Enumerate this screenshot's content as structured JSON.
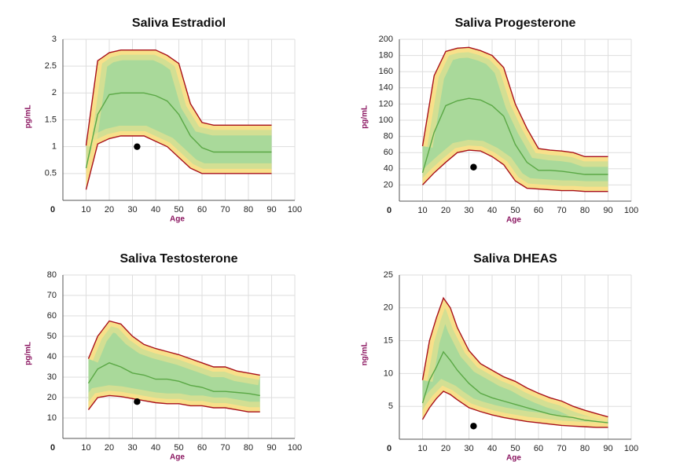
{
  "chart_data": [
    {
      "type": "band",
      "title": "Saliva Estradiol",
      "y_label": "pg/mL",
      "x_label": "Age",
      "x": [
        10,
        15,
        20,
        25,
        30,
        35,
        40,
        45,
        50,
        55,
        60,
        65,
        70,
        75,
        80,
        85,
        90
      ],
      "series": [
        {
          "color": "#a8101a",
          "values": [
            1.02,
            2.6,
            2.75,
            2.8,
            2.8,
            2.8,
            2.8,
            2.7,
            2.55,
            1.8,
            1.45,
            1.4,
            1.4,
            1.4,
            1.4,
            1.4,
            1.4
          ]
        },
        {
          "color": "#5aa845",
          "values": [
            0.6,
            1.6,
            1.97,
            2.0,
            2.0,
            2.0,
            1.95,
            1.85,
            1.6,
            1.2,
            0.98,
            0.9,
            0.9,
            0.9,
            0.9,
            0.9,
            0.9
          ]
        },
        {
          "color": "#a8101a",
          "values": [
            0.2,
            1.05,
            1.15,
            1.2,
            1.2,
            1.2,
            1.1,
            1.0,
            0.8,
            0.6,
            0.5,
            0.5,
            0.5,
            0.5,
            0.5,
            0.5,
            0.5
          ]
        }
      ],
      "points": {
        "color": "#000000",
        "x": [
          32
        ],
        "values": [
          1.0
        ]
      },
      "xlim": [
        0,
        100
      ],
      "xticks": [
        10,
        20,
        30,
        40,
        50,
        60,
        70,
        80,
        90,
        100
      ],
      "ylim": [
        0,
        3
      ],
      "yticks": [
        0,
        0.5,
        1,
        1.5,
        2,
        2.5,
        3
      ],
      "grid": true
    },
    {
      "type": "band",
      "title": "Saliva Progesterone",
      "y_label": "pg/mL",
      "x_label": "Age",
      "x": [
        10,
        15,
        20,
        25,
        30,
        35,
        40,
        45,
        50,
        55,
        60,
        65,
        70,
        75,
        80,
        85,
        90
      ],
      "series": [
        {
          "color": "#a8101a",
          "values": [
            68,
            155,
            185,
            189,
            190,
            186,
            180,
            165,
            120,
            90,
            65,
            63,
            62,
            60,
            55,
            55,
            55
          ]
        },
        {
          "color": "#5aa845",
          "values": [
            35,
            85,
            118,
            124,
            127,
            125,
            118,
            105,
            70,
            48,
            38,
            38,
            37,
            35,
            33,
            33,
            33
          ]
        },
        {
          "color": "#a8101a",
          "values": [
            20,
            35,
            48,
            60,
            63,
            62,
            55,
            45,
            25,
            16,
            15,
            14,
            13,
            13,
            12,
            12,
            12
          ]
        }
      ],
      "points": {
        "color": "#000000",
        "x": [
          32
        ],
        "values": [
          42
        ]
      },
      "xlim": [
        0,
        100
      ],
      "xticks": [
        10,
        20,
        30,
        40,
        50,
        60,
        70,
        80,
        90,
        100
      ],
      "ylim": [
        0,
        200
      ],
      "yticks": [
        0,
        20,
        40,
        60,
        80,
        100,
        120,
        140,
        160,
        180,
        200
      ],
      "grid": true
    },
    {
      "type": "band",
      "title": "Saliva Testosterone",
      "y_label": "pg/mL",
      "x_label": "Age",
      "x": [
        11,
        15,
        20,
        25,
        30,
        35,
        40,
        45,
        50,
        55,
        60,
        65,
        70,
        75,
        80,
        85
      ],
      "series": [
        {
          "color": "#a8101a",
          "values": [
            39,
            50,
            57.5,
            56,
            50,
            46,
            44,
            42.5,
            41,
            39,
            37,
            35,
            35,
            33,
            32,
            31
          ]
        },
        {
          "color": "#5aa845",
          "values": [
            27,
            34,
            37,
            35,
            32,
            31,
            29,
            29,
            28,
            26,
            25,
            23,
            23,
            22.5,
            22,
            21
          ]
        },
        {
          "color": "#a8101a",
          "values": [
            14,
            20,
            21,
            20.5,
            19.5,
            18.5,
            17.5,
            17,
            17,
            16,
            16,
            15,
            15,
            14,
            13,
            13
          ]
        }
      ],
      "points": {
        "color": "#000000",
        "x": [
          32
        ],
        "values": [
          18
        ]
      },
      "xlim": [
        0,
        100
      ],
      "xticks": [
        10,
        20,
        30,
        40,
        50,
        60,
        70,
        80,
        90,
        100
      ],
      "ylim": [
        0,
        80
      ],
      "yticks": [
        0,
        10,
        20,
        30,
        40,
        50,
        60,
        70,
        80
      ],
      "grid": true
    },
    {
      "type": "band",
      "title": "Saliva DHEAS",
      "y_label": "ng/mL",
      "x_label": "Age",
      "x": [
        10,
        13,
        16,
        19,
        22,
        25,
        30,
        35,
        40,
        45,
        50,
        55,
        60,
        65,
        70,
        75,
        80,
        85,
        90
      ],
      "series": [
        {
          "color": "#a8101a",
          "values": [
            9,
            15,
            18.5,
            21.5,
            20,
            17,
            13.5,
            11.5,
            10.5,
            9.5,
            8.8,
            7.8,
            7,
            6.3,
            5.8,
            5,
            4.4,
            3.9,
            3.4
          ]
        },
        {
          "color": "#5aa845",
          "values": [
            5.5,
            9,
            11,
            13.3,
            12,
            10.5,
            8.5,
            7,
            6.3,
            5.8,
            5.3,
            4.8,
            4.3,
            3.8,
            3.5,
            3.3,
            2.9,
            2.7,
            2.5
          ]
        },
        {
          "color": "#a8101a",
          "values": [
            3,
            4.8,
            6.2,
            7.3,
            6.8,
            6,
            4.8,
            4.2,
            3.7,
            3.3,
            3,
            2.7,
            2.5,
            2.3,
            2.1,
            2,
            1.9,
            1.8,
            1.8
          ]
        }
      ],
      "points": {
        "color": "#000000",
        "x": [
          32
        ],
        "values": [
          2
        ]
      },
      "xlim": [
        0,
        100
      ],
      "xticks": [
        10,
        20,
        30,
        40,
        50,
        60,
        70,
        80,
        90,
        100
      ],
      "ylim": [
        0,
        25
      ],
      "yticks": [
        0,
        5,
        10,
        15,
        20,
        25
      ],
      "grid": true
    }
  ]
}
